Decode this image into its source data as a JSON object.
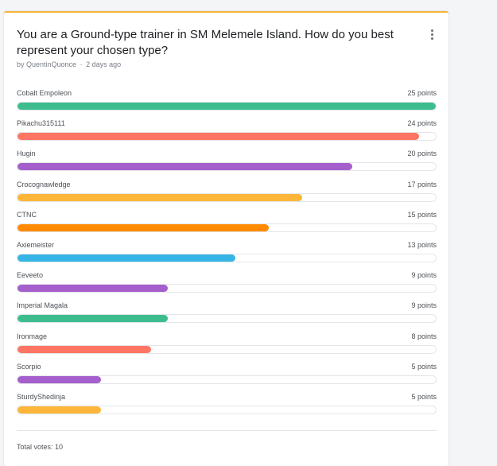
{
  "poll": {
    "title": "You are a Ground-type trainer in SM Melemele Island. How do you best represent your chosen type?",
    "author": "by QuentinQuonce",
    "separator": "·",
    "time_ago": "2 days ago",
    "accent_color": "#f6b53a",
    "options": [
      {
        "label": "Cobalt Empoleon",
        "points_text": "25 points",
        "points": 25,
        "color": "#3dbd8e"
      },
      {
        "label": "Pikachu315111",
        "points_text": "24 points",
        "points": 24,
        "color": "#ff7563"
      },
      {
        "label": "Hugin",
        "points_text": "20 points",
        "points": 20,
        "color": "#a55fcc"
      },
      {
        "label": "Crocognawledge",
        "points_text": "17 points",
        "points": 17,
        "color": "#feb63a"
      },
      {
        "label": "CTNC",
        "points_text": "15 points",
        "points": 15,
        "color": "#ff8a00"
      },
      {
        "label": "Axiemeister",
        "points_text": "13 points",
        "points": 13,
        "color": "#36b4e6"
      },
      {
        "label": "Eeveeto",
        "points_text": "9 points",
        "points": 9,
        "color": "#a55fcc"
      },
      {
        "label": "Imperial Magala",
        "points_text": "9 points",
        "points": 9,
        "color": "#3dbd8e"
      },
      {
        "label": "Ironmage",
        "points_text": "8 points",
        "points": 8,
        "color": "#ff7563"
      },
      {
        "label": "Scorpio",
        "points_text": "5 points",
        "points": 5,
        "color": "#a55fcc"
      },
      {
        "label": "SturdyShedinja",
        "points_text": "5 points",
        "points": 5,
        "color": "#feb63a"
      }
    ],
    "max_points": 25,
    "total_votes": "Total votes: 10"
  },
  "icons": {
    "menu": "kebab-menu-icon"
  }
}
